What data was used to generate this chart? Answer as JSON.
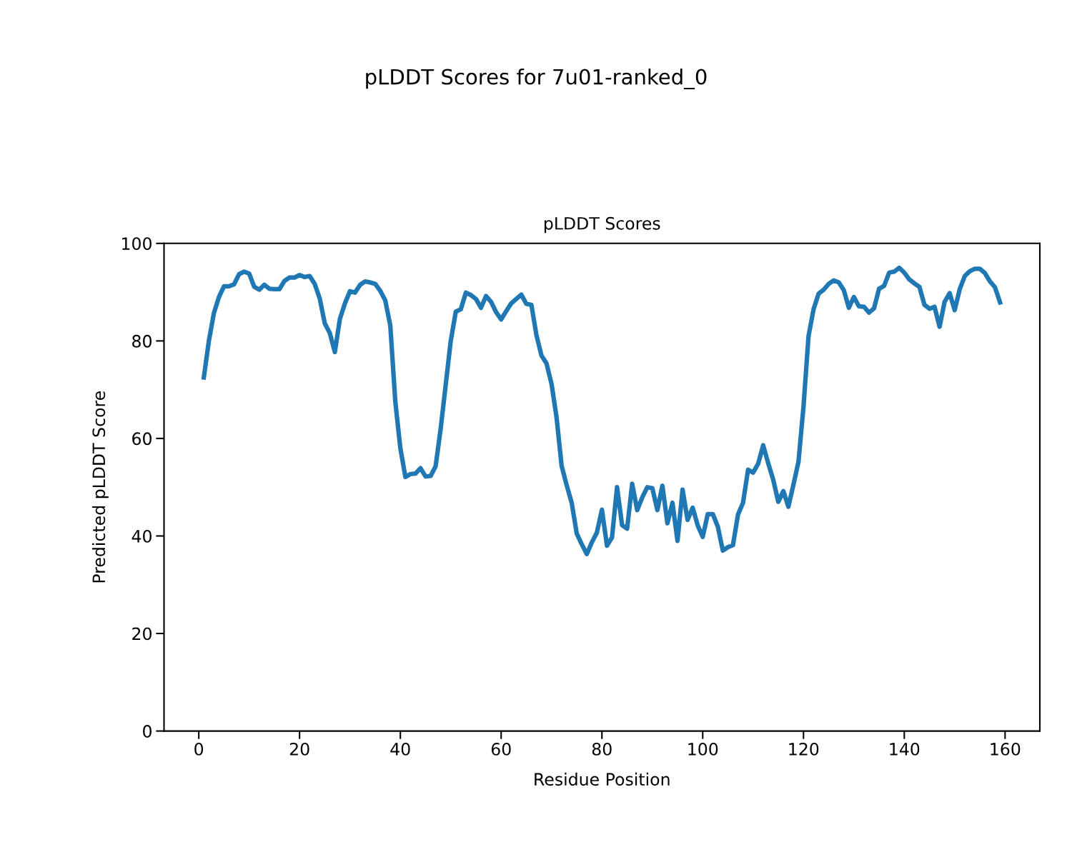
{
  "chart_data": {
    "type": "line",
    "title": "pLDDT Scores",
    "subtitle": "pLDDT Scores for 7u01-ranked_0",
    "xlabel": "Residue Position",
    "ylabel": "Predicted pLDDT Score",
    "x": [
      1,
      2,
      3,
      4,
      5,
      6,
      7,
      8,
      9,
      10,
      11,
      12,
      13,
      14,
      15,
      16,
      17,
      18,
      19,
      20,
      21,
      22,
      23,
      24,
      25,
      26,
      27,
      28,
      29,
      30,
      31,
      32,
      33,
      34,
      35,
      36,
      37,
      38,
      39,
      40,
      41,
      42,
      43,
      44,
      45,
      46,
      47,
      48,
      49,
      50,
      51,
      52,
      53,
      54,
      55,
      56,
      57,
      58,
      59,
      60,
      61,
      62,
      63,
      64,
      65,
      66,
      67,
      68,
      69,
      70,
      71,
      72,
      73,
      74,
      75,
      76,
      77,
      78,
      79,
      80,
      81,
      82,
      83,
      84,
      85,
      86,
      87,
      88,
      89,
      90,
      91,
      92,
      93,
      94,
      95,
      96,
      97,
      98,
      99,
      100,
      101,
      102,
      103,
      104,
      105,
      106,
      107,
      108,
      109,
      110,
      111,
      112,
      113,
      114,
      115,
      116,
      117,
      118,
      119,
      120,
      121,
      122,
      123,
      124,
      125,
      126,
      127,
      128,
      129,
      130,
      131,
      132,
      133,
      134,
      135,
      136,
      137,
      138,
      139,
      140,
      141,
      142,
      143,
      144,
      145,
      146,
      147,
      148,
      149,
      150,
      151,
      152,
      153,
      154,
      155,
      156,
      157,
      158,
      159
    ],
    "series": [
      {
        "color": "#1f77b4",
        "values": [
          72.5,
          80,
          85.7,
          89,
          91.2,
          91.2,
          91.6,
          93.7,
          94.2,
          93.8,
          91.1,
          90.5,
          91.5,
          90.7,
          90.6,
          90.6,
          92.3,
          93.0,
          93.0,
          93.5,
          93.1,
          93.3,
          91.7,
          88.7,
          83.6,
          81.6,
          77.7,
          84.5,
          87.7,
          90.2,
          89.9,
          91.5,
          92.2,
          92.0,
          91.7,
          90.3,
          88.3,
          83.2,
          67.5,
          58,
          52.1,
          52.7,
          52.8,
          53.9,
          52.2,
          52.3,
          54.3,
          62,
          71,
          80,
          86,
          86.5,
          89.9,
          89.4,
          88.6,
          86.8,
          89.2,
          88,
          85.9,
          84.4,
          86.1,
          87.7,
          88.6,
          89.5,
          87.6,
          87.4,
          81.2,
          77,
          75.4,
          71.2,
          64.3,
          54.4,
          50.4,
          46.8,
          40.5,
          38.3,
          36.3,
          38.7,
          40.7,
          45.4,
          38.0,
          39.7,
          50.0,
          42.2,
          41.5,
          50.7,
          45.3,
          47.9,
          50.0,
          49.8,
          45.3,
          50.3,
          42.6,
          46.8,
          39.0,
          49.5,
          43.3,
          45.8,
          42.2,
          39.8,
          44.5,
          44.5,
          41.9,
          37.0,
          37.7,
          38.1,
          44.4,
          46.8,
          53.6,
          53.0,
          54.8,
          58.6,
          54.9,
          51.5,
          47.0,
          49.2,
          46.0,
          50.5,
          55.2,
          66.5,
          81.0,
          86.5,
          89.7,
          90.5,
          91.7,
          92.4,
          92.0,
          90.4,
          86.8,
          89.0,
          87.1,
          87.0,
          85.8,
          86.7,
          90.7,
          91.3,
          94.0,
          94.2,
          95.0,
          94.0,
          92.6,
          91.8,
          91.1,
          87.4,
          86.6,
          87.0,
          82.9,
          88.0,
          89.8,
          86.3,
          90.6,
          93.3,
          94.3,
          94.8,
          94.8,
          93.9,
          92.2,
          91.0,
          87.9
        ]
      }
    ],
    "xlim": [
      -6.9,
      166.9
    ],
    "xticks": [
      0,
      20,
      40,
      60,
      80,
      100,
      120,
      140,
      160
    ],
    "ylim": [
      0,
      100
    ],
    "yticks": [
      0,
      20,
      40,
      60,
      80,
      100
    ],
    "grid": false,
    "marker": "none",
    "line_style": "solid"
  }
}
